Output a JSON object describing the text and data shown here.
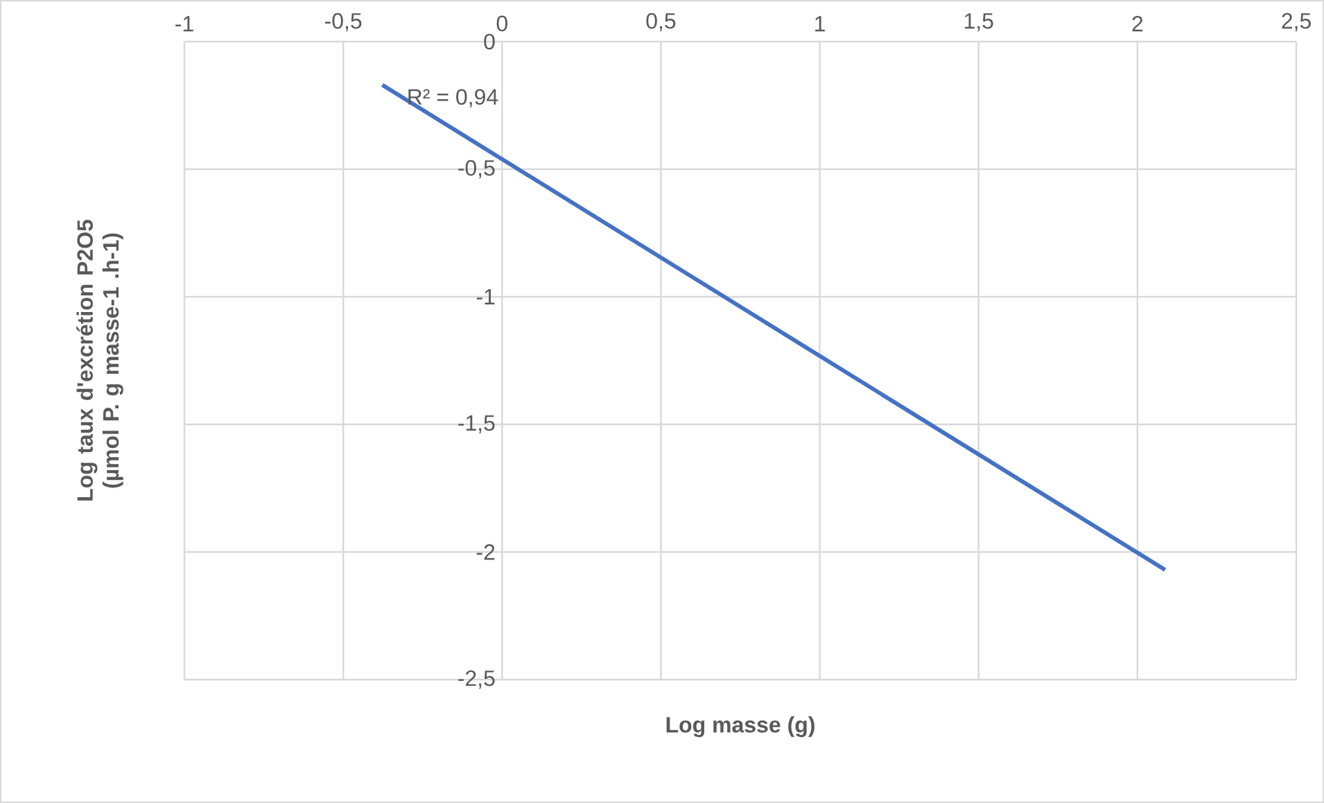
{
  "chart_data": {
    "type": "line",
    "xlabel": "Log masse (g)",
    "ylabel": "Log taux d'excrétion P2O5\n(µmol P. g masse-1 .h-1)",
    "x": [
      -0.377,
      2.087
    ],
    "series": [
      {
        "color": "#4472c4",
        "values": [
          -0.17,
          -2.07
        ]
      }
    ],
    "xlim": [
      -1,
      2.5
    ],
    "xticks": [
      -1,
      {
        "value": -0.5,
        "label": "-0,5"
      },
      0,
      {
        "value": 0.5,
        "label": "0,5"
      },
      1,
      {
        "value": 1.5,
        "label": "1,5"
      },
      2,
      {
        "value": 2.5,
        "label": "2,5"
      }
    ],
    "ylim": [
      -2.5,
      0
    ],
    "yticks": [
      {
        "value": -2.5,
        "label": "-2,5"
      },
      -2,
      {
        "value": -1.5,
        "label": "-1,5"
      },
      -1,
      {
        "value": -0.5,
        "label": "-0,5"
      },
      0
    ],
    "grid": true,
    "marker": "none",
    "line_style": "solid",
    "annotations": [
      "R² = 0,94"
    ]
  }
}
